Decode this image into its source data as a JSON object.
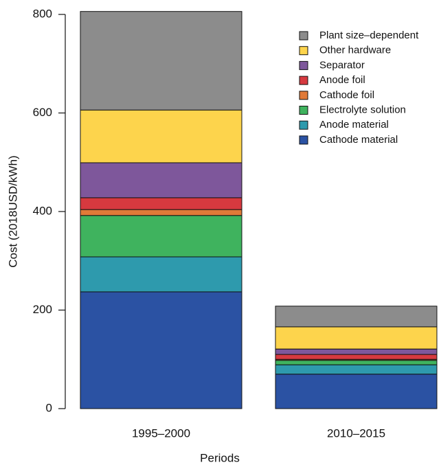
{
  "chart_data": {
    "type": "stacked-bar",
    "categories": [
      "1995–2000",
      "2010–2015"
    ],
    "xlabel": "Periods",
    "ylabel": "Cost (2018USD/kWh)",
    "ylim": [
      0,
      800
    ],
    "yticks": [
      0,
      200,
      400,
      600,
      800
    ],
    "legend": "top-right",
    "series": [
      {
        "name": "Cathode material",
        "color": "#2b52a3",
        "values": [
          237,
          70
        ]
      },
      {
        "name": "Anode material",
        "color": "#2e9aad",
        "values": [
          71,
          19
        ]
      },
      {
        "name": "Electrolyte solution",
        "color": "#3fb35e",
        "values": [
          84,
          9
        ]
      },
      {
        "name": "Cathode foil",
        "color": "#e07a38",
        "values": [
          12,
          2
        ]
      },
      {
        "name": "Anode foil",
        "color": "#d6393f",
        "values": [
          24,
          10
        ]
      },
      {
        "name": "Separator",
        "color": "#7e579b",
        "values": [
          71,
          11
        ]
      },
      {
        "name": "Other hardware",
        "color": "#fdd44c",
        "values": [
          107,
          45
        ]
      },
      {
        "name": "Plant size–dependent",
        "color": "#8c8c8c",
        "values": [
          200,
          42
        ]
      }
    ]
  }
}
